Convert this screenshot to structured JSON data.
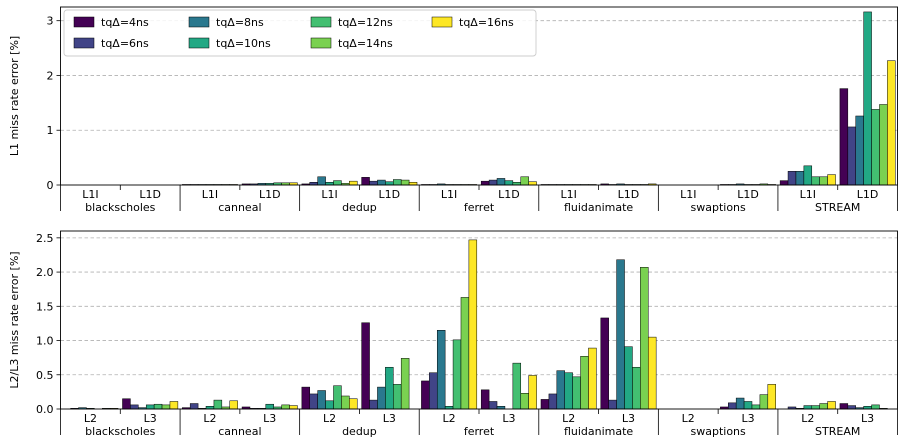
{
  "colors": {
    "tq4": "#440154",
    "tq6": "#414487",
    "tq8": "#2a788e",
    "tq10": "#22a884",
    "tq12": "#43bf71",
    "tq14": "#7ad151",
    "tq16": "#fde725"
  },
  "chart_data": [
    {
      "type": "bar",
      "ylabel": "L1 miss rate error [%]",
      "ylim": [
        0,
        3.25
      ],
      "yticks": [
        0,
        1,
        2,
        3
      ],
      "grid": "horizontal dashed",
      "legend_position": "top-left",
      "series_names": [
        "tqΔ=4ns",
        "tqΔ=6ns",
        "tqΔ=8ns",
        "tqΔ=10ns",
        "tqΔ=12ns",
        "tqΔ=14ns",
        "tqΔ=16ns"
      ],
      "groups": [
        {
          "benchmark": "blackscholes",
          "subgroups": [
            {
              "label": "L1I",
              "values": [
                0.0,
                0.0,
                0.0,
                0.0,
                0.0,
                0.0,
                0.0
              ]
            },
            {
              "label": "L1D",
              "values": [
                0.0,
                0.0,
                0.0,
                0.0,
                0.0,
                0.0,
                0.0
              ]
            }
          ]
        },
        {
          "benchmark": "canneal",
          "subgroups": [
            {
              "label": "L1I",
              "values": [
                0.01,
                0.01,
                0.01,
                0.01,
                0.01,
                0.01,
                0.01
              ]
            },
            {
              "label": "L1D",
              "values": [
                0.02,
                0.02,
                0.03,
                0.03,
                0.04,
                0.04,
                0.04
              ]
            }
          ]
        },
        {
          "benchmark": "dedup",
          "subgroups": [
            {
              "label": "L1I",
              "values": [
                0.02,
                0.05,
                0.15,
                0.05,
                0.08,
                0.03,
                0.07
              ]
            },
            {
              "label": "L1D",
              "values": [
                0.14,
                0.07,
                0.09,
                0.06,
                0.1,
                0.09,
                0.05
              ]
            }
          ]
        },
        {
          "benchmark": "ferret",
          "subgroups": [
            {
              "label": "L1I",
              "values": [
                0.01,
                0.01,
                0.02,
                0.01,
                0.01,
                0.01,
                0.01
              ]
            },
            {
              "label": "L1D",
              "values": [
                0.07,
                0.09,
                0.12,
                0.08,
                0.05,
                0.15,
                0.06
              ]
            }
          ]
        },
        {
          "benchmark": "fluidanimate",
          "subgroups": [
            {
              "label": "L1I",
              "values": [
                0.01,
                0.01,
                0.01,
                0.01,
                0.01,
                0.01,
                0.01
              ]
            },
            {
              "label": "L1D",
              "values": [
                0.02,
                0.01,
                0.02,
                0.01,
                0.01,
                0.01,
                0.02
              ]
            }
          ]
        },
        {
          "benchmark": "swaptions",
          "subgroups": [
            {
              "label": "L1I",
              "values": [
                0.0,
                0.0,
                0.0,
                0.0,
                0.0,
                0.0,
                0.0
              ]
            },
            {
              "label": "L1D",
              "values": [
                0.01,
                0.01,
                0.02,
                0.01,
                0.01,
                0.02,
                0.01
              ]
            }
          ]
        },
        {
          "benchmark": "STREAM",
          "subgroups": [
            {
              "label": "L1I",
              "values": [
                0.08,
                0.25,
                0.25,
                0.35,
                0.15,
                0.15,
                0.19
              ]
            },
            {
              "label": "L1D",
              "values": [
                1.76,
                1.06,
                1.26,
                3.16,
                1.38,
                1.47,
                2.27
              ]
            }
          ]
        }
      ]
    },
    {
      "type": "bar",
      "ylabel": "L2/L3 miss rate error [%]",
      "ylim": [
        0,
        2.6
      ],
      "yticks": [
        0.0,
        0.5,
        1.0,
        1.5,
        2.0,
        2.5
      ],
      "grid": "horizontal dashed",
      "series_names": [
        "tqΔ=4ns",
        "tqΔ=6ns",
        "tqΔ=8ns",
        "tqΔ=10ns",
        "tqΔ=12ns",
        "tqΔ=14ns",
        "tqΔ=16ns"
      ],
      "groups": [
        {
          "benchmark": "blackscholes",
          "subgroups": [
            {
              "label": "L2",
              "values": [
                0.0,
                0.01,
                0.02,
                0.01,
                0.0,
                0.01,
                0.01
              ]
            },
            {
              "label": "L3",
              "values": [
                0.15,
                0.06,
                0.02,
                0.06,
                0.07,
                0.06,
                0.11
              ]
            }
          ]
        },
        {
          "benchmark": "canneal",
          "subgroups": [
            {
              "label": "L2",
              "values": [
                0.02,
                0.08,
                0.01,
                0.04,
                0.13,
                0.03,
                0.12
              ]
            },
            {
              "label": "L3",
              "values": [
                0.03,
                0.01,
                0.01,
                0.07,
                0.03,
                0.06,
                0.05
              ]
            }
          ]
        },
        {
          "benchmark": "dedup",
          "subgroups": [
            {
              "label": "L2",
              "values": [
                0.32,
                0.22,
                0.27,
                0.12,
                0.34,
                0.19,
                0.15
              ]
            },
            {
              "label": "L3",
              "values": [
                1.26,
                0.13,
                0.32,
                0.61,
                0.36,
                0.74,
                0.0
              ]
            }
          ]
        },
        {
          "benchmark": "ferret",
          "subgroups": [
            {
              "label": "L2",
              "values": [
                0.41,
                0.53,
                1.15,
                0.04,
                1.01,
                1.63,
                2.47
              ]
            },
            {
              "label": "L3",
              "values": [
                0.28,
                0.11,
                0.04,
                0.0,
                0.67,
                0.23,
                0.49
              ]
            }
          ]
        },
        {
          "benchmark": "fluidanimate",
          "subgroups": [
            {
              "label": "L2",
              "values": [
                0.14,
                0.22,
                0.56,
                0.53,
                0.47,
                0.77,
                0.89
              ]
            },
            {
              "label": "L3",
              "values": [
                1.33,
                0.13,
                2.18,
                0.91,
                0.61,
                2.07,
                1.05
              ]
            }
          ]
        },
        {
          "benchmark": "swaptions",
          "subgroups": [
            {
              "label": "L2",
              "values": [
                0.0,
                0.0,
                0.0,
                0.0,
                0.0,
                0.0,
                0.0
              ]
            },
            {
              "label": "L3",
              "values": [
                0.03,
                0.09,
                0.16,
                0.11,
                0.06,
                0.21,
                0.36
              ]
            }
          ]
        },
        {
          "benchmark": "STREAM",
          "subgroups": [
            {
              "label": "L2",
              "values": [
                0.0,
                0.03,
                0.01,
                0.05,
                0.05,
                0.08,
                0.11
              ]
            },
            {
              "label": "L3",
              "values": [
                0.08,
                0.05,
                0.02,
                0.04,
                0.06,
                0.01,
                0.0
              ]
            }
          ]
        }
      ]
    }
  ]
}
